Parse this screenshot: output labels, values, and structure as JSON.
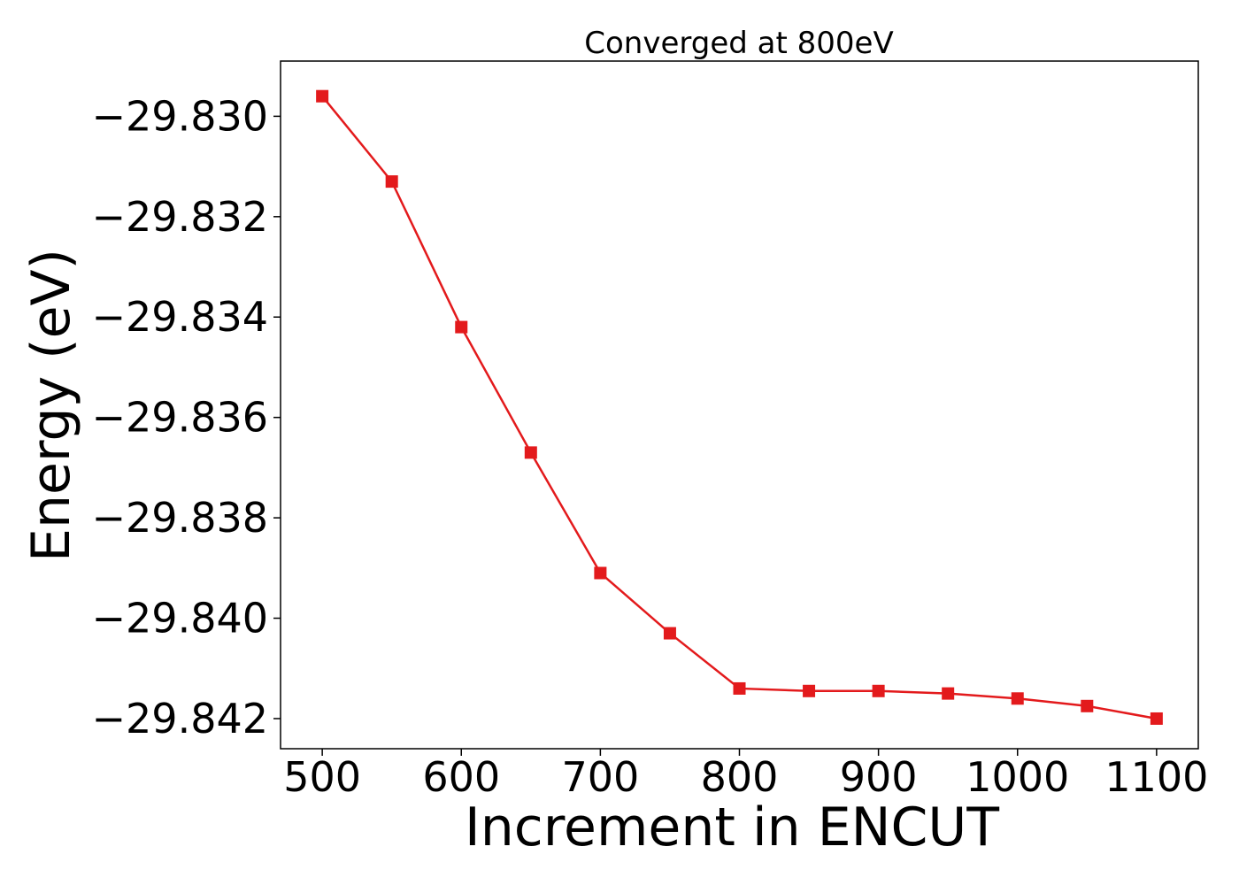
{
  "chart_data": {
    "type": "line",
    "title": "Converged at 800eV",
    "xlabel": "Increment in ENCUT",
    "ylabel": "Energy (eV)",
    "xlim": [
      470,
      1130
    ],
    "ylim": [
      -29.8426,
      -29.8289
    ],
    "x_ticks": [
      500,
      600,
      700,
      800,
      900,
      1000,
      1100
    ],
    "y_ticks": [
      -29.83,
      -29.832,
      -29.834,
      -29.836,
      -29.838,
      -29.84,
      -29.842
    ],
    "y_tick_labels": [
      "−29.830",
      "−29.832",
      "−29.834",
      "−29.836",
      "−29.838",
      "−29.840",
      "−29.842"
    ],
    "grid": false,
    "series": [
      {
        "color": "#e31a1c",
        "marker": "square",
        "x": [
          500,
          550,
          600,
          650,
          700,
          750,
          800,
          850,
          900,
          950,
          1000,
          1050,
          1100
        ],
        "y": [
          -29.8296,
          -29.8313,
          -29.8342,
          -29.8367,
          -29.8391,
          -29.8403,
          -29.8414,
          -29.84145,
          -29.84145,
          -29.8415,
          -29.8416,
          -29.84175,
          -29.842
        ]
      }
    ]
  }
}
